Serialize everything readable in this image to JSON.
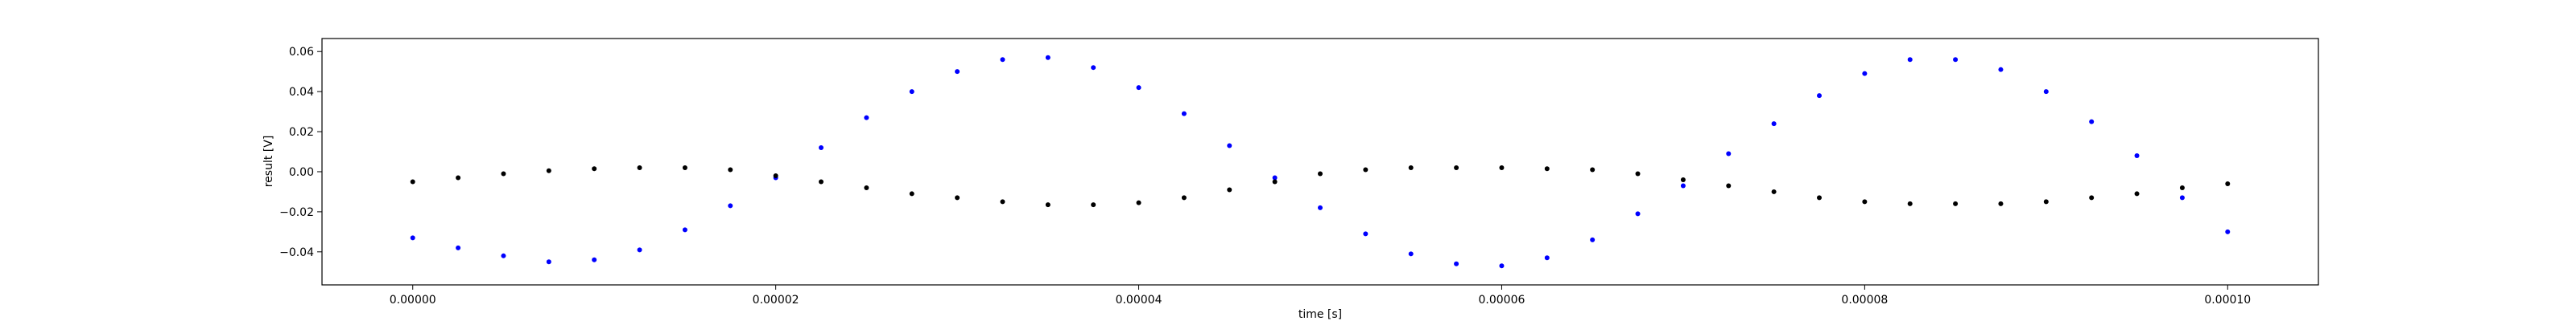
{
  "chart_data": {
    "type": "scatter",
    "title": "",
    "xlabel": "time [s]",
    "ylabel": "result [V]",
    "xlim": [
      -5e-06,
      0.000105
    ],
    "ylim": [
      -0.0565,
      0.0665
    ],
    "x_ticks": [
      0.0,
      2e-05,
      4e-05,
      6e-05,
      8e-05,
      0.0001
    ],
    "x_tick_labels": [
      "0.00000",
      "0.00002",
      "0.00004",
      "0.00006",
      "0.00008",
      "0.00010"
    ],
    "y_ticks": [
      -0.04,
      -0.02,
      0.0,
      0.02,
      0.04,
      0.06
    ],
    "y_tick_labels": [
      "−0.04",
      "−0.02",
      "0.00",
      "0.02",
      "0.04",
      "0.06"
    ],
    "grid": false,
    "legend": "none",
    "series": [
      {
        "color": "#0000ff",
        "marker": "dot",
        "x": [
          0.0,
          2.5e-06,
          5e-06,
          7.5e-06,
          1e-05,
          1.25e-05,
          1.5e-05,
          1.75e-05,
          2e-05,
          2.25e-05,
          2.5e-05,
          2.75e-05,
          3e-05,
          3.25e-05,
          3.5e-05,
          3.75e-05,
          4e-05,
          4.25e-05,
          4.5e-05,
          4.75e-05,
          5e-05,
          5.25e-05,
          5.5e-05,
          5.75e-05,
          6e-05,
          6.25e-05,
          6.5e-05,
          6.75e-05,
          7e-05,
          7.25e-05,
          7.5e-05,
          7.75e-05,
          8e-05,
          8.25e-05,
          8.5e-05,
          8.75e-05,
          9e-05,
          9.25e-05,
          9.5e-05,
          9.75e-05,
          0.0001
        ],
        "y": [
          -0.033,
          -0.038,
          -0.042,
          -0.045,
          -0.044,
          -0.039,
          -0.029,
          -0.017,
          -0.003,
          0.012,
          0.027,
          0.04,
          0.05,
          0.056,
          0.057,
          0.052,
          0.042,
          0.029,
          0.013,
          -0.003,
          -0.018,
          -0.031,
          -0.041,
          -0.046,
          -0.047,
          -0.043,
          -0.034,
          -0.021,
          -0.007,
          0.009,
          0.024,
          0.038,
          0.049,
          0.056,
          0.056,
          0.051,
          0.04,
          0.025,
          0.008,
          -0.013,
          -0.03
        ]
      },
      {
        "color": "#000000",
        "marker": "dot",
        "x": [
          0.0,
          2.5e-06,
          5e-06,
          7.5e-06,
          1e-05,
          1.25e-05,
          1.5e-05,
          1.75e-05,
          2e-05,
          2.25e-05,
          2.5e-05,
          2.75e-05,
          3e-05,
          3.25e-05,
          3.5e-05,
          3.75e-05,
          4e-05,
          4.25e-05,
          4.5e-05,
          4.75e-05,
          5e-05,
          5.25e-05,
          5.5e-05,
          5.75e-05,
          6e-05,
          6.25e-05,
          6.5e-05,
          6.75e-05,
          7e-05,
          7.25e-05,
          7.5e-05,
          7.75e-05,
          8e-05,
          8.25e-05,
          8.5e-05,
          8.75e-05,
          9e-05,
          9.25e-05,
          9.5e-05,
          9.75e-05,
          0.0001
        ],
        "y": [
          -0.005,
          -0.003,
          -0.001,
          0.0005,
          0.0015,
          0.002,
          0.002,
          0.001,
          -0.002,
          -0.005,
          -0.008,
          -0.011,
          -0.013,
          -0.015,
          -0.0165,
          -0.0165,
          -0.0155,
          -0.013,
          -0.009,
          -0.005,
          -0.001,
          0.001,
          0.002,
          0.002,
          0.002,
          0.0015,
          0.001,
          -0.001,
          -0.004,
          -0.007,
          -0.01,
          -0.013,
          -0.015,
          -0.016,
          -0.016,
          -0.016,
          -0.015,
          -0.013,
          -0.011,
          -0.008,
          -0.006
        ]
      }
    ]
  }
}
